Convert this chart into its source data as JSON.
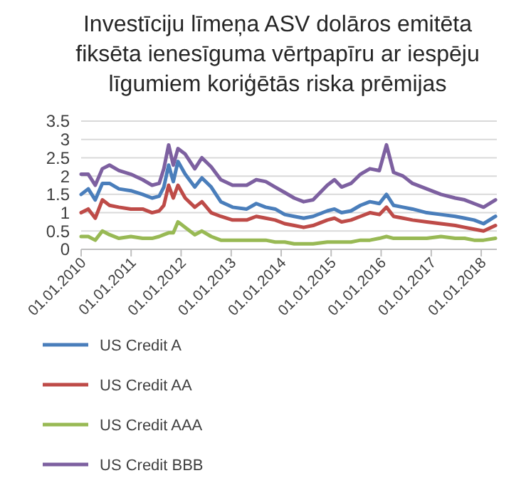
{
  "chart_data": {
    "type": "line",
    "title": "Investīciju līmeņa ASV dolāros emitēta\nfiksēta ienesīguma vērtpapīru ar iespēju\nlīgumiem koriģētās riska prēmijas",
    "x": [
      "2010-01-01",
      "2010-02-22",
      "2010-04-14",
      "2010-06-05",
      "2010-07-27",
      "2010-10-04",
      "2010-12-30",
      "2011-03-26",
      "2011-06-03",
      "2011-07-25",
      "2011-08-28",
      "2011-10-02",
      "2011-11-05",
      "2011-12-09",
      "2012-01-31",
      "2012-04-10",
      "2012-06-01",
      "2012-08-08",
      "2012-10-17",
      "2013-01-11",
      "2013-04-24",
      "2013-07-03",
      "2013-09-10",
      "2013-11-18",
      "2014-01-27",
      "2014-04-06",
      "2014-06-14",
      "2014-08-22",
      "2014-12-04",
      "2015-01-25",
      "2015-03-18",
      "2015-05-26",
      "2015-08-03",
      "2015-10-11",
      "2015-12-19",
      "2016-02-09",
      "2016-04-01",
      "2016-06-09",
      "2016-08-17",
      "2016-11-29",
      "2017-03-13",
      "2017-06-25",
      "2017-09-02",
      "2017-11-10",
      "2018-01-18",
      "2018-04-15"
    ],
    "series": [
      {
        "name": "US Credit A",
        "color": "#4a7ebb",
        "values": [
          1.5,
          1.65,
          1.35,
          1.8,
          1.8,
          1.65,
          1.6,
          1.5,
          1.4,
          1.45,
          1.7,
          2.3,
          1.85,
          2.4,
          2.05,
          1.7,
          1.95,
          1.7,
          1.3,
          1.15,
          1.1,
          1.25,
          1.15,
          1.1,
          0.95,
          0.9,
          0.85,
          0.9,
          1.05,
          1.1,
          1.0,
          1.05,
          1.2,
          1.3,
          1.25,
          1.5,
          1.2,
          1.15,
          1.1,
          1.0,
          0.95,
          0.9,
          0.85,
          0.8,
          0.7,
          0.9
        ]
      },
      {
        "name": "US Credit AA",
        "color": "#be4b48",
        "values": [
          1.0,
          1.1,
          0.85,
          1.35,
          1.2,
          1.15,
          1.1,
          1.1,
          1.0,
          1.05,
          1.2,
          1.75,
          1.4,
          1.75,
          1.4,
          1.15,
          1.3,
          1.0,
          0.9,
          0.8,
          0.8,
          0.9,
          0.85,
          0.8,
          0.7,
          0.65,
          0.6,
          0.65,
          0.8,
          0.85,
          0.75,
          0.8,
          0.9,
          1.0,
          0.95,
          1.15,
          0.9,
          0.85,
          0.8,
          0.75,
          0.7,
          0.65,
          0.6,
          0.55,
          0.5,
          0.65
        ]
      },
      {
        "name": "US Credit AAA",
        "color": "#98b954",
        "values": [
          0.35,
          0.35,
          0.25,
          0.5,
          0.4,
          0.3,
          0.35,
          0.3,
          0.3,
          0.35,
          0.4,
          0.45,
          0.45,
          0.75,
          0.6,
          0.4,
          0.5,
          0.35,
          0.25,
          0.25,
          0.25,
          0.25,
          0.25,
          0.2,
          0.2,
          0.15,
          0.15,
          0.15,
          0.2,
          0.2,
          0.2,
          0.2,
          0.25,
          0.25,
          0.3,
          0.35,
          0.3,
          0.3,
          0.3,
          0.3,
          0.35,
          0.3,
          0.3,
          0.25,
          0.25,
          0.3
        ]
      },
      {
        "name": "US Credit BBB",
        "color": "#7d60a0",
        "values": [
          2.05,
          2.05,
          1.75,
          2.2,
          2.3,
          2.15,
          2.05,
          1.9,
          1.75,
          1.8,
          2.2,
          2.85,
          2.3,
          2.75,
          2.6,
          2.2,
          2.5,
          2.25,
          1.9,
          1.75,
          1.75,
          1.9,
          1.85,
          1.7,
          1.55,
          1.4,
          1.3,
          1.35,
          1.75,
          1.9,
          1.7,
          1.8,
          2.05,
          2.2,
          2.15,
          2.85,
          2.1,
          2.0,
          1.8,
          1.65,
          1.5,
          1.4,
          1.35,
          1.25,
          1.15,
          1.35
        ]
      }
    ],
    "xlim": [
      "2010-01-01",
      "2018-04-25"
    ],
    "xticks": [
      {
        "value": "2010-01-01",
        "label": "01.01.2010"
      },
      {
        "value": "2011-01-01",
        "label": "01.01.2011"
      },
      {
        "value": "2012-01-01",
        "label": "01.01.2012"
      },
      {
        "value": "2013-01-01",
        "label": "01.01.2013"
      },
      {
        "value": "2014-01-01",
        "label": "01.01.2014"
      },
      {
        "value": "2015-01-01",
        "label": "01.01.2015"
      },
      {
        "value": "2016-01-01",
        "label": "01.01.2016"
      },
      {
        "value": "2017-01-01",
        "label": "01.01.2017"
      },
      {
        "value": "2018-01-01",
        "label": "01.01.2018"
      }
    ],
    "ylim": [
      0,
      3.5
    ],
    "yticks": [
      0,
      0.5,
      1,
      1.5,
      2,
      2.5,
      3,
      3.5
    ],
    "grid": "y",
    "legend": "bottom",
    "marker": "none",
    "line_style": "solid"
  }
}
